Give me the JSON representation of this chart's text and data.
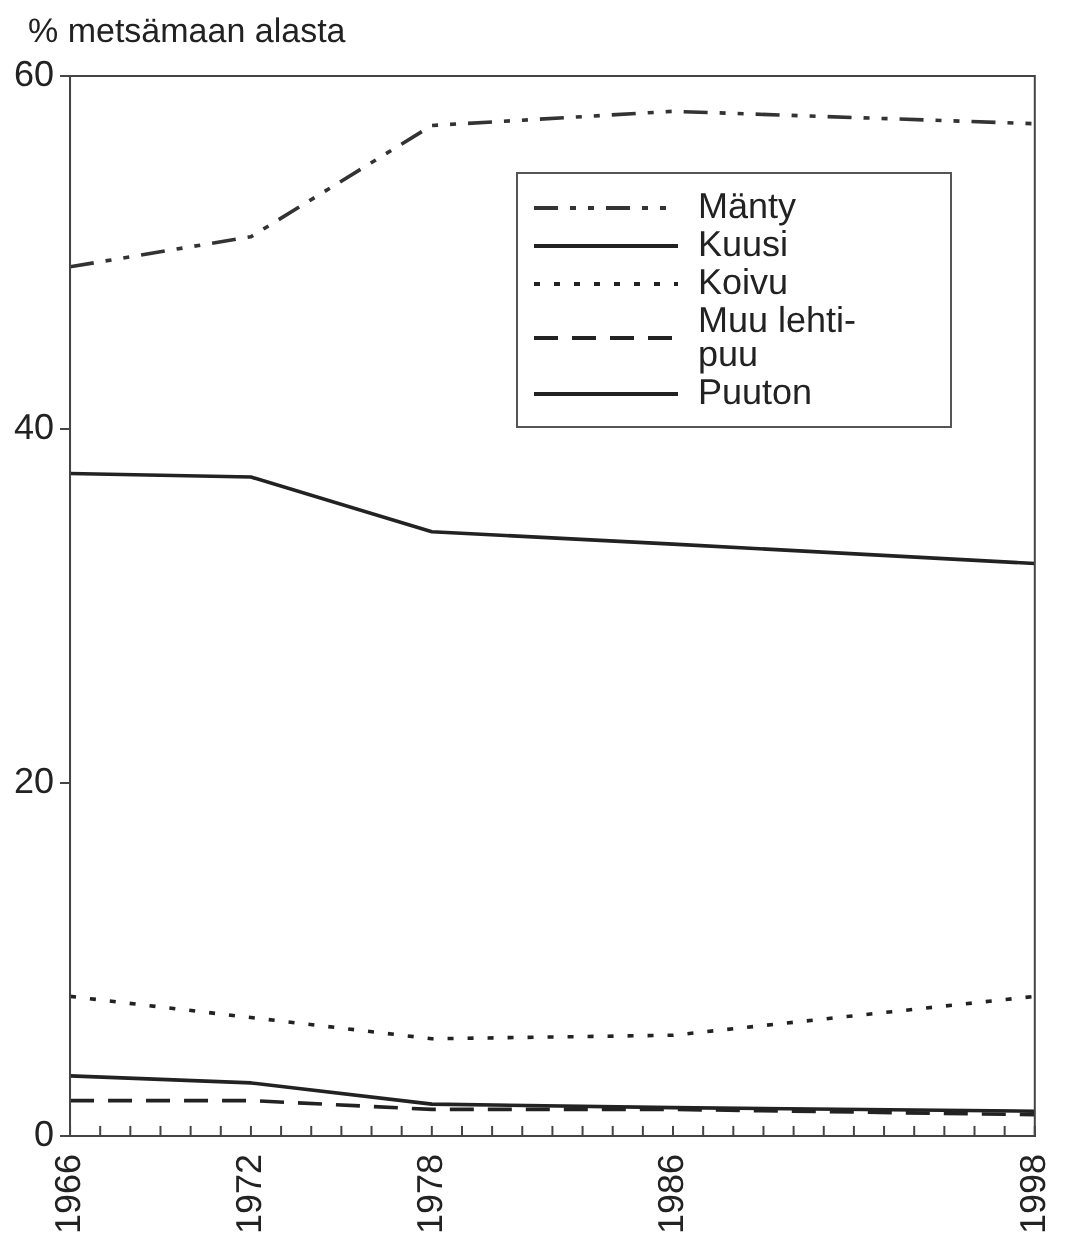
{
  "chart_data": {
    "type": "line",
    "ylabel": "% metsämaan alasta",
    "x": [
      1966,
      1972,
      1978,
      1986,
      1998
    ],
    "series": [
      {
        "name": "Mänty",
        "color": "#333333",
        "line_style": "dashdot",
        "values": [
          49.2,
          50.9,
          57.2,
          58.0,
          57.3
        ]
      },
      {
        "name": "Kuusi",
        "color": "#222222",
        "line_style": "solid",
        "values": [
          37.5,
          37.3,
          34.2,
          33.5,
          32.4
        ]
      },
      {
        "name": "Koivu",
        "color": "#222222",
        "line_style": "dotted",
        "values": [
          7.9,
          6.7,
          5.5,
          5.7,
          7.9
        ]
      },
      {
        "name": "Muu lehti-puu",
        "color": "#222222",
        "line_style": "dashed",
        "values": [
          2.0,
          2.0,
          1.5,
          1.5,
          1.2
        ]
      },
      {
        "name": "Puuton",
        "color": "#222222",
        "line_style": "solid",
        "values": [
          3.4,
          3.0,
          1.8,
          1.6,
          1.4
        ]
      }
    ],
    "xlim": [
      1966,
      1998
    ],
    "xticks": [
      1966,
      {
        "value": 1967,
        "label": null
      },
      {
        "value": 1968,
        "label": null
      },
      {
        "value": 1969,
        "label": null
      },
      {
        "value": 1970,
        "label": null
      },
      {
        "value": 1971,
        "label": null
      },
      1972,
      {
        "value": 1973,
        "label": null
      },
      {
        "value": 1974,
        "label": null
      },
      {
        "value": 1975,
        "label": null
      },
      {
        "value": 1976,
        "label": null
      },
      {
        "value": 1977,
        "label": null
      },
      1978,
      {
        "value": 1979,
        "label": null
      },
      {
        "value": 1980,
        "label": null
      },
      {
        "value": 1981,
        "label": null
      },
      {
        "value": 1982,
        "label": null
      },
      {
        "value": 1983,
        "label": null
      },
      {
        "value": 1984,
        "label": null
      },
      {
        "value": 1985,
        "label": null
      },
      1986,
      {
        "value": 1987,
        "label": null
      },
      {
        "value": 1988,
        "label": null
      },
      {
        "value": 1989,
        "label": null
      },
      {
        "value": 1990,
        "label": null
      },
      {
        "value": 1991,
        "label": null
      },
      {
        "value": 1992,
        "label": null
      },
      {
        "value": 1993,
        "label": null
      },
      {
        "value": 1994,
        "label": null
      },
      {
        "value": 1995,
        "label": null
      },
      {
        "value": 1996,
        "label": null
      },
      {
        "value": 1997,
        "label": null
      },
      1998
    ],
    "ylim": [
      0,
      60
    ],
    "yticks": [
      0,
      20,
      40,
      60
    ],
    "grid": false,
    "legend": "top right",
    "marker": "none"
  }
}
